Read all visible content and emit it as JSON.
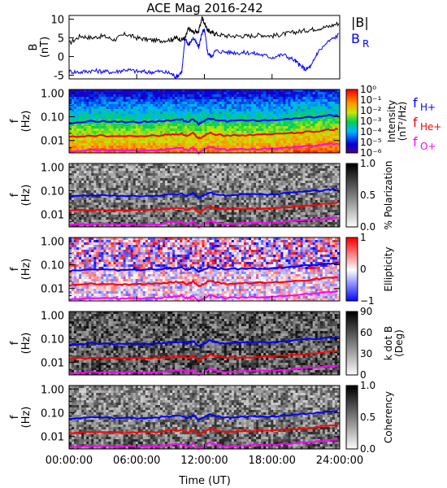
{
  "title": "ACE Mag 2016-242",
  "chart_data": [
    {
      "type": "line",
      "ylabel": "B",
      "yunit": "(nT)",
      "ylim": [
        -6,
        11
      ],
      "yticks": [
        "-5",
        "0",
        "5",
        "10"
      ],
      "xlim": [
        0,
        24
      ],
      "series": [
        {
          "name": "|B|",
          "color": "#000000",
          "x": [
            0,
            1,
            2,
            3,
            4,
            5,
            6,
            7,
            8,
            9,
            9.5,
            10,
            10.3,
            10.6,
            11,
            11.5,
            11.8,
            12,
            12.3,
            12.6,
            13,
            14,
            15,
            16,
            17,
            18,
            19,
            20,
            21,
            22,
            23,
            24
          ],
          "y": [
            3.5,
            5.5,
            5,
            5.5,
            4.5,
            6,
            5,
            4.5,
            4.2,
            4.5,
            5,
            4.5,
            5,
            7.5,
            6.5,
            6.8,
            10.5,
            9,
            7,
            6.5,
            6,
            5.5,
            5.5,
            5.5,
            5.8,
            5.5,
            6,
            6.5,
            7,
            7.5,
            8,
            9
          ]
        },
        {
          "name": "B_R",
          "color": "#0000ff",
          "x": [
            0,
            1,
            2,
            3,
            4,
            5,
            6,
            7,
            8,
            9,
            9.5,
            10,
            10.3,
            10.6,
            11,
            11.5,
            11.8,
            12,
            12.3,
            12.6,
            13,
            14,
            15,
            16,
            17,
            18,
            19,
            20,
            20.5,
            21,
            21.5,
            22,
            23,
            24
          ],
          "y": [
            -4,
            -4.2,
            -3.8,
            -4,
            -4.2,
            -3.5,
            -4,
            -4.2,
            -4,
            -4.5,
            -5.5,
            -4,
            5,
            3,
            5,
            2.5,
            6.5,
            7,
            1,
            0,
            1.5,
            1.2,
            1,
            1,
            0.5,
            -0.2,
            0.5,
            -1,
            -2.5,
            -3.5,
            -2.5,
            1,
            4,
            6
          ]
        }
      ]
    },
    {
      "type": "heatmap",
      "ylabel": "f",
      "yunit": "(Hz)",
      "yticks": [
        "1.00",
        "0.10",
        "0.01"
      ],
      "colorbar": {
        "label": "Intensity",
        "unit": "(nT²/Hz)",
        "ticks": [
          "10⁰",
          "10⁻¹",
          "10⁻²",
          "10⁻³",
          "10⁻⁴",
          "10⁻⁵",
          "10⁻⁶"
        ],
        "scale": "rainbow"
      },
      "side_labels": [
        {
          "text": "f",
          "sub": "H+",
          "color": "#0000ff"
        },
        {
          "text": "f",
          "sub": "He+",
          "color": "#ff0000"
        },
        {
          "text": "f",
          "sub": "O+",
          "color": "#ff00ff"
        }
      ]
    },
    {
      "type": "heatmap",
      "ylabel": "f",
      "yunit": "(Hz)",
      "yticks": [
        "1.00",
        "0.10",
        "0.01"
      ],
      "colorbar": {
        "label": "% Polarization",
        "unit": "",
        "ticks": [
          "1.0",
          "0.5",
          "0.0"
        ],
        "scale": "gray"
      }
    },
    {
      "type": "heatmap",
      "ylabel": "f",
      "yunit": "(Hz)",
      "yticks": [
        "1.00",
        "0.10",
        "0.01"
      ],
      "colorbar": {
        "label": "Ellipticity",
        "unit": "",
        "ticks": [
          "1",
          "0",
          "−1"
        ],
        "scale": "bwr"
      }
    },
    {
      "type": "heatmap",
      "ylabel": "f",
      "yunit": "(Hz)",
      "yticks": [
        "1.00",
        "0.10",
        "0.01"
      ],
      "colorbar": {
        "label": "k dot B",
        "unit": "(Deg)",
        "ticks": [
          "90",
          "60",
          "30",
          "0"
        ],
        "scale": "gray"
      }
    },
    {
      "type": "heatmap",
      "ylabel": "f",
      "yunit": "(Hz)",
      "yticks": [
        "1.00",
        "0.10",
        "0.01"
      ],
      "colorbar": {
        "label": "Coherency",
        "unit": "",
        "ticks": [
          "1.0",
          "0.5",
          "0.0"
        ],
        "scale": "gray"
      }
    }
  ],
  "frequency_lines": {
    "x": [
      0,
      2,
      4,
      6,
      8,
      9,
      10,
      10.5,
      11,
      11.5,
      12,
      12.5,
      13,
      14,
      16,
      18,
      20,
      22,
      23,
      24
    ],
    "H+": [
      0.055,
      0.065,
      0.06,
      0.06,
      0.065,
      0.07,
      0.075,
      0.06,
      0.08,
      0.05,
      0.065,
      0.085,
      0.07,
      0.065,
      0.07,
      0.07,
      0.085,
      0.1,
      0.11,
      0.12
    ],
    "He+": [
      0.014,
      0.016,
      0.015,
      0.015,
      0.016,
      0.018,
      0.019,
      0.015,
      0.02,
      0.012,
      0.016,
      0.022,
      0.018,
      0.016,
      0.017,
      0.018,
      0.021,
      0.025,
      0.028,
      0.03
    ],
    "O+": [
      0.0035,
      0.004,
      0.0038,
      0.0038,
      0.004,
      0.0045,
      0.0048,
      0.0038,
      0.005,
      0.003,
      0.004,
      0.0055,
      0.0045,
      0.004,
      0.0043,
      0.0045,
      0.0053,
      0.0063,
      0.007,
      0.0075
    ]
  },
  "x_axis": {
    "label": "Time (UT)",
    "ticks": [
      "00:00:00",
      "06:00:00",
      "12:00:00",
      "18:00:00",
      "24:00:00"
    ],
    "tick_values": [
      0,
      6,
      12,
      18,
      24
    ]
  }
}
